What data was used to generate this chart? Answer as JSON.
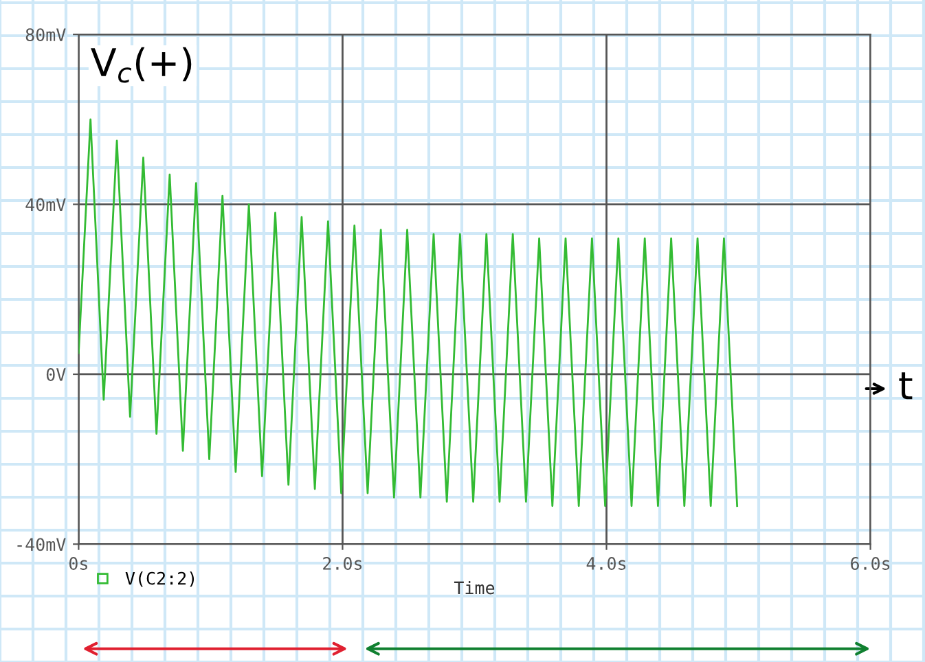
{
  "chart_data": {
    "type": "line",
    "xlabel": "Time",
    "x": [
      0,
      0.09,
      0.19,
      0.29,
      0.39,
      0.49,
      0.59,
      0.69,
      0.79,
      0.89,
      0.99,
      1.09,
      1.19,
      1.29,
      1.39,
      1.49,
      1.59,
      1.69,
      1.79,
      1.89,
      1.99,
      2.09,
      2.19,
      2.29,
      2.39,
      2.49,
      2.59,
      2.69,
      2.79,
      2.89,
      2.99,
      3.09,
      3.19,
      3.29,
      3.39,
      3.49,
      3.59,
      3.69,
      3.79,
      3.89,
      3.99,
      4.09,
      4.19,
      4.29,
      4.39,
      4.49,
      4.59,
      4.69,
      4.79,
      4.89,
      4.99
    ],
    "series": [
      {
        "name": "V(C2:2)",
        "color": "#33bb33",
        "values": [
          5,
          60,
          -6,
          55,
          -10,
          51,
          -14,
          47,
          -18,
          45,
          -20,
          42,
          -23,
          40,
          -24,
          38,
          -26,
          37,
          -27,
          36,
          -28,
          35,
          -28,
          34,
          -29,
          34,
          -29,
          33,
          -30,
          33,
          -30,
          33,
          -30,
          33,
          -30,
          32,
          -31,
          32,
          -31,
          32,
          -31,
          32,
          -31,
          32,
          -31,
          32,
          -31,
          32,
          -31,
          32,
          -31
        ]
      }
    ],
    "xlim": [
      0,
      6
    ],
    "ylim": [
      -40,
      80
    ],
    "xticks": [
      {
        "value": 0,
        "label": "0s"
      },
      {
        "value": 2,
        "label": "2.0s"
      },
      {
        "value": 4,
        "label": "4.0s"
      },
      {
        "value": 6,
        "label": "6.0s"
      }
    ],
    "yticks": [
      {
        "value": -40,
        "label": "-40mV"
      },
      {
        "value": 0,
        "label": "0V"
      },
      {
        "value": 40,
        "label": "40mV"
      },
      {
        "value": 80,
        "label": "80mV"
      }
    ],
    "grid": true,
    "legend": "bottom left",
    "marker": "none",
    "line_style": "solid",
    "annotations": [
      "V$_{c}$(+)",
      "t"
    ]
  }
}
